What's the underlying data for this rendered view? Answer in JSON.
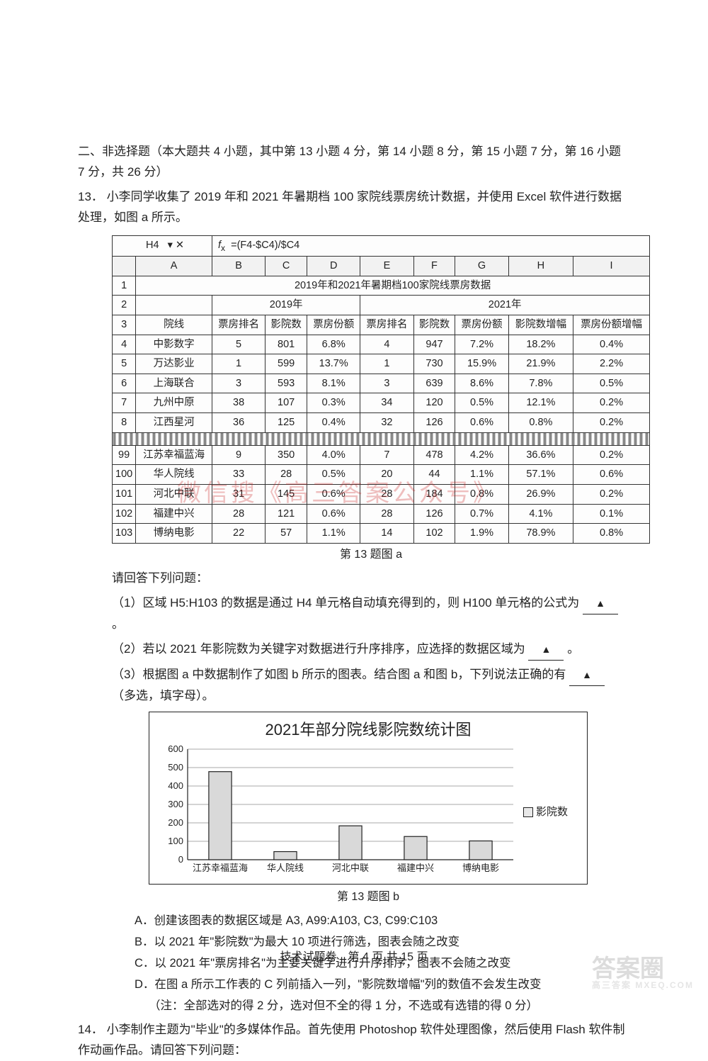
{
  "section": {
    "heading": "二、非选择题（本大题共 4 小题，其中第 13 小题 4 分，第 14 小题 8 分，第 15 小题 7 分，第 16 小题 7 分，共 26 分）"
  },
  "q13": {
    "number": "13．",
    "text": "小李同学收集了 2019 年和 2021 年暑期档 100 家院线票房统计数据，并使用 Excel 软件进行数据处理，如图 a 所示。",
    "table": {
      "formula_cell": "H4",
      "formula_fx": "=(F4-$C4)/$C4",
      "cols": [
        "",
        "A",
        "B",
        "C",
        "D",
        "E",
        "F",
        "G",
        "H",
        "I"
      ],
      "title_row": "2019年和2021年暑期档100家院线票房数据",
      "year_left": "2019年",
      "year_right": "2021年",
      "headers": [
        "",
        "院线",
        "票房排名",
        "影院数",
        "票房份额",
        "票房排名",
        "影院数",
        "票房份额",
        "影院数增幅",
        "票房份额增幅"
      ],
      "rows_top": [
        [
          "4",
          "中影数字",
          "5",
          "801",
          "6.8%",
          "4",
          "947",
          "7.2%",
          "18.2%",
          "0.4%"
        ],
        [
          "5",
          "万达影业",
          "1",
          "599",
          "13.7%",
          "1",
          "730",
          "15.9%",
          "21.9%",
          "2.2%"
        ],
        [
          "6",
          "上海联合",
          "3",
          "593",
          "8.1%",
          "3",
          "639",
          "8.6%",
          "7.8%",
          "0.5%"
        ],
        [
          "7",
          "九州中原",
          "38",
          "107",
          "0.3%",
          "34",
          "120",
          "0.5%",
          "12.1%",
          "0.2%"
        ],
        [
          "8",
          "江西星河",
          "36",
          "125",
          "0.4%",
          "32",
          "126",
          "0.6%",
          "0.8%",
          "0.2%"
        ]
      ],
      "rows_bottom": [
        [
          "99",
          "江苏幸福蓝海",
          "9",
          "350",
          "4.0%",
          "7",
          "478",
          "4.2%",
          "36.6%",
          "0.2%"
        ],
        [
          "100",
          "华人院线",
          "33",
          "28",
          "0.5%",
          "20",
          "44",
          "1.1%",
          "57.1%",
          "0.6%"
        ],
        [
          "101",
          "河北中联",
          "31",
          "145",
          "0.6%",
          "28",
          "184",
          "0.8%",
          "26.9%",
          "0.2%"
        ],
        [
          "102",
          "福建中兴",
          "28",
          "121",
          "0.6%",
          "28",
          "126",
          "0.7%",
          "4.1%",
          "0.1%"
        ],
        [
          "103",
          "博纳电影",
          "22",
          "57",
          "1.1%",
          "14",
          "102",
          "1.9%",
          "78.9%",
          "0.8%"
        ]
      ],
      "caption": "第 13 题图 a"
    },
    "prompt": "请回答下列问题：",
    "sub1": "（1）区域 H5:H103 的数据是通过 H4 单元格自动填充得到的，则 H100 单元格的公式为",
    "sub1_end": "。",
    "sub2": "（2）若以 2021 年影院数为关键字对数据进行升序排序，应选择的数据区域为",
    "sub2_end": "。",
    "sub3a": "（3）根据图 a 中数据制作了如图 b 所示的图表。结合图 a 和图 b，下列说法正确的有",
    "sub3b": "（多选，填字母）。",
    "chart": {
      "title": "2021年部分院线影院数统计图",
      "categories": [
        "江苏幸福蓝海",
        "华人院线",
        "河北中联",
        "福建中兴",
        "博纳电影"
      ],
      "values": [
        478,
        44,
        184,
        126,
        102
      ],
      "ylim": [
        0,
        600
      ],
      "ytick_step": 100,
      "bar_color": "#d9d9d9",
      "bar_border": "#222222",
      "axis_color": "#222222",
      "grid_color": "#555555",
      "bg": "#ffffff",
      "legend_label": "影院数",
      "caption": "第 13 题图 b"
    },
    "options": {
      "A": "A．创建该图表的数据区域是 A3, A99:A103, C3, C99:C103",
      "B": "B．以 2021 年\"影院数\"为最大 10 项进行筛选，图表会随之改变",
      "C": "C．以 2021 年\"票房排名\"为主要关键字进行升序排序，图表不会随之改变",
      "D": "D．在图 a 所示工作表的 C 列前插入一列，\"影院数增幅\"列的数值不会发生改变",
      "note": "（注：全部选对的得 2 分，选对但不全的得 1 分，不选或有选错的得 0 分）"
    }
  },
  "q14": {
    "number": "14．",
    "text": "小李制作主题为\"毕业\"的多媒体作品。首先使用 Photoshop 软件处理图像，然后使用 Flash 软件制作动画作品。请回答下列问题："
  },
  "footer": "技术试题卷　第 4 页 共 15 页",
  "watermark_text": "微信搜《高三答案公众号》",
  "corner": {
    "big": "答案圈",
    "small": "高三答案  MXEQ.COM"
  }
}
